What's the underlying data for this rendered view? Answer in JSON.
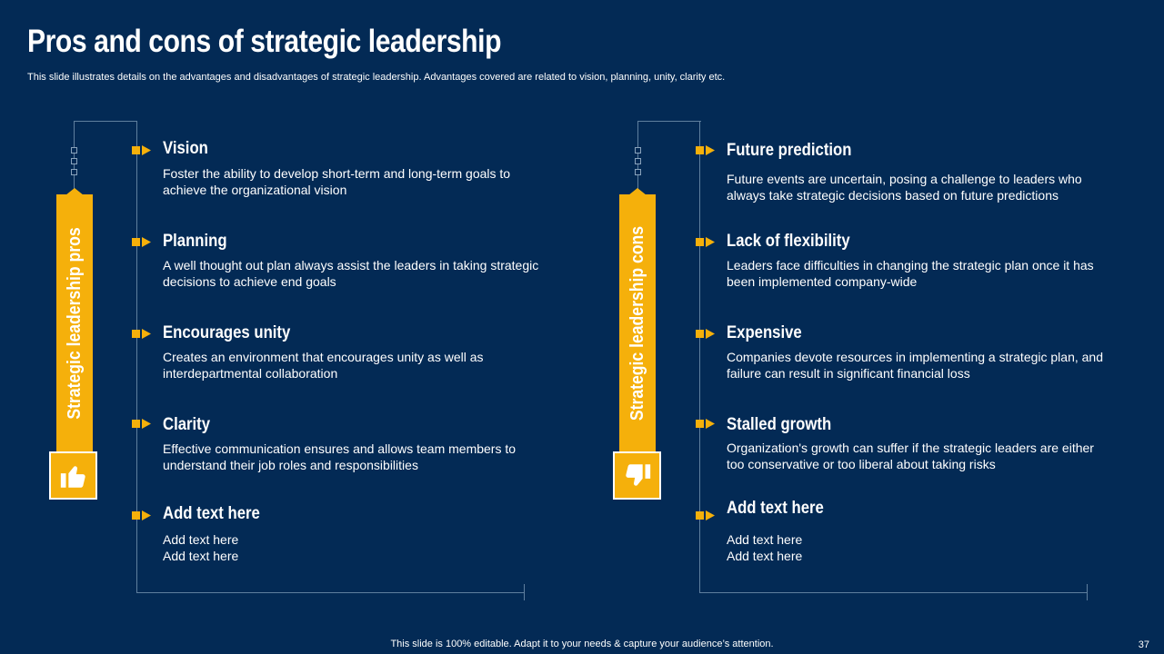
{
  "slide": {
    "title": "Pros and cons of strategic leadership",
    "subtitle": "This slide illustrates details on the advantages and disadvantages of strategic leadership. Advantages covered are related to vision, planning, unity, clarity etc.",
    "footer": "This slide is 100% editable. Adapt it to your needs & capture your audience’s attention.",
    "page_number": "37"
  },
  "colors": {
    "background": "#032a55",
    "accent": "#f5b00b",
    "text": "#ffffff",
    "line": "#5f7f9e"
  },
  "pros": {
    "label": "Strategic leadership pros",
    "icon": "thumbs-up-icon",
    "items": [
      {
        "title": "Vision",
        "text": "Foster the ability to develop short-term and long-term goals to achieve the organizational vision"
      },
      {
        "title": "Planning",
        "text": "A well thought out plan always assist the leaders in taking strategic decisions to achieve end goals"
      },
      {
        "title": "Encourages unity",
        "text": "Creates an environment that encourages unity as well as interdepartmental collaboration"
      },
      {
        "title": "Clarity",
        "text": "Effective communication ensures and allows team members to understand their  job roles and responsibilities"
      },
      {
        "title": "Add text here",
        "text": "Add text here\nAdd text here"
      }
    ]
  },
  "cons": {
    "label": "Strategic leadership cons",
    "icon": "thumbs-down-icon",
    "items": [
      {
        "title": "Future prediction",
        "text": "Future events are uncertain, posing a challenge to leaders who always take strategic decisions based on future predictions"
      },
      {
        "title": "Lack of flexibility",
        "text": "Leaders face difficulties in changing the strategic plan once it has been implemented company-wide"
      },
      {
        "title": "Expensive",
        "text": "Companies devote resources in implementing a strategic plan, and failure can result in significant financial loss"
      },
      {
        "title": "Stalled growth",
        "text": "Organization's growth can suffer if the strategic leaders are either too conservative or too liberal about taking risks"
      },
      {
        "title": "Add text here",
        "text": "Add text here\nAdd text here"
      }
    ]
  }
}
